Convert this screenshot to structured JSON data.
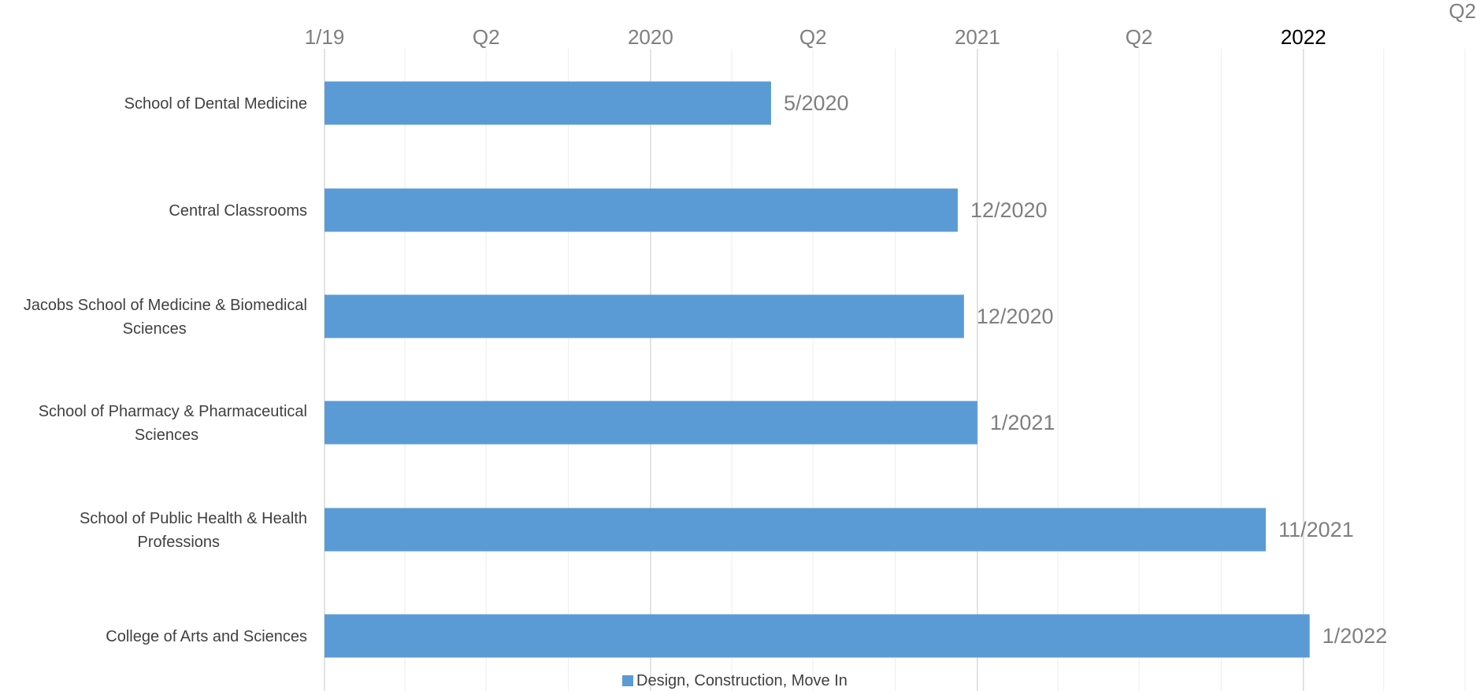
{
  "chart_data": {
    "type": "bar",
    "orientation": "horizontal",
    "categories": [
      "School of Dental Medicine",
      "Central Classrooms",
      "Jacobs School of Medicine & Biomedical Sciences",
      "School of Pharmacy & Pharmaceutical Sciences",
      "School of Public Health & Health Professions",
      "College of Arts and Sciences"
    ],
    "series": [
      {
        "name": "Design, Construction, Move In",
        "values": [
          "2020-05-15",
          "2020-12-10",
          "2020-12-17",
          "2021-01-01",
          "2021-11-20",
          "2022-01-08"
        ],
        "data_labels": [
          "5/2020",
          "12/2020",
          "12/2020",
          "1/2021",
          "11/2021",
          "1/2022"
        ]
      }
    ],
    "x_axis": {
      "scale": "date",
      "range": [
        "2019-01-01",
        "2022-07-01"
      ],
      "position": "top",
      "ticks": [
        {
          "value": "2019-01-01",
          "label": "1/19"
        },
        {
          "value": "2019-07-01",
          "label": "Q2"
        },
        {
          "value": "2020-01-01",
          "label": "2020"
        },
        {
          "value": "2020-07-01",
          "label": "Q2"
        },
        {
          "value": "2021-01-01",
          "label": "2021"
        },
        {
          "value": "2021-07-01",
          "label": "Q2"
        },
        {
          "value": "2022-01-01",
          "label": "2022"
        },
        {
          "value": "2022-07-01",
          "label": "Q2"
        }
      ]
    },
    "grid": true,
    "legend_position": "bottom",
    "colors": {
      "bar": "#5b9bd5",
      "major_grid": "#d9d9d9",
      "minor_grid": "#ededed",
      "tick_label": "#7f7f7f",
      "category_label": "#404040",
      "data_label": "#7f7f7f"
    }
  }
}
